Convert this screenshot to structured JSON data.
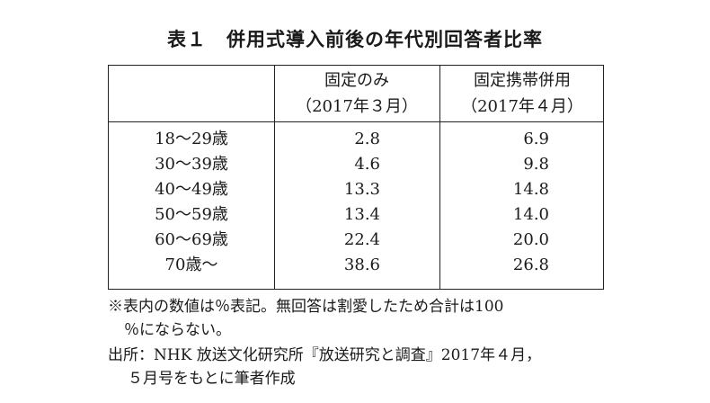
{
  "title": {
    "label": "表１",
    "text": "併用式導入前後の年代別回答者比率"
  },
  "table": {
    "headers": [
      {
        "line1": "固定のみ",
        "line2": "（2017年３月）"
      },
      {
        "line1": "固定携帯併用",
        "line2": "（2017年４月）"
      }
    ],
    "rows": [
      {
        "age": "18〜29歳",
        "fixed": "2.8",
        "both": "6.9"
      },
      {
        "age": "30〜39歳",
        "fixed": "4.6",
        "both": "9.8"
      },
      {
        "age": "40〜49歳",
        "fixed": "13.3",
        "both": "14.8"
      },
      {
        "age": "50〜59歳",
        "fixed": "13.4",
        "both": "14.0"
      },
      {
        "age": "60〜69歳",
        "fixed": "22.4",
        "both": "20.0"
      },
      {
        "age": "70歳〜",
        "fixed": "38.6",
        "both": "26.8"
      }
    ]
  },
  "notes": {
    "note1_a": "※表内の数値は％表記。無回答は割愛したため合計は100",
    "note1_b": "％にならない。",
    "source_a": "出所：NHK 放送文化研究所『放送研究と調査』2017年４月，",
    "source_b": "５月号をもとに筆者作成"
  }
}
